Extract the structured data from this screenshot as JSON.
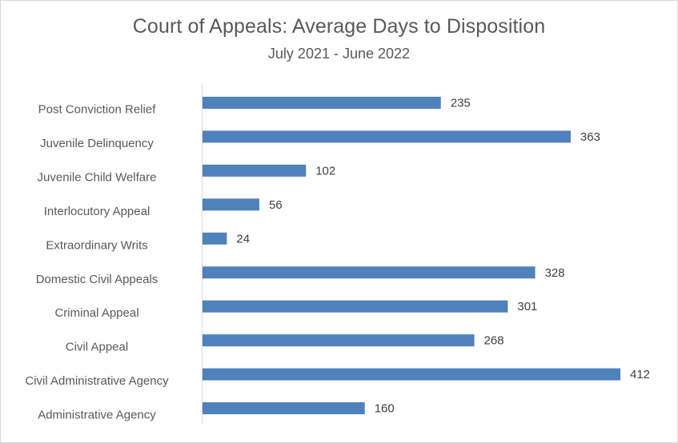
{
  "chart_data": {
    "type": "bar",
    "orientation": "horizontal",
    "title": "Court of Appeals: Average Days to Disposition",
    "subtitle": "July 2021 - June 2022",
    "xlabel": "",
    "ylabel": "",
    "categories": [
      "Post Conviction Relief",
      "Juvenile Delinquency",
      "Juvenile Child Welfare",
      "Interlocutory Appeal",
      "Extraordinary Writs",
      "Domestic Civil Appeals",
      "Criminal Appeal",
      "Civil Appeal",
      "Civil Administrative Agency",
      "Administrative Agency"
    ],
    "values": [
      235,
      363,
      102,
      56,
      24,
      328,
      301,
      268,
      412,
      160
    ],
    "data_labels": [
      "235",
      "363",
      "102",
      "56",
      "24",
      "328",
      "301",
      "268",
      "412",
      "160"
    ],
    "xlim": [
      0,
      412
    ],
    "grid": false,
    "legend": "none",
    "bar_color": "#4f81bd"
  }
}
